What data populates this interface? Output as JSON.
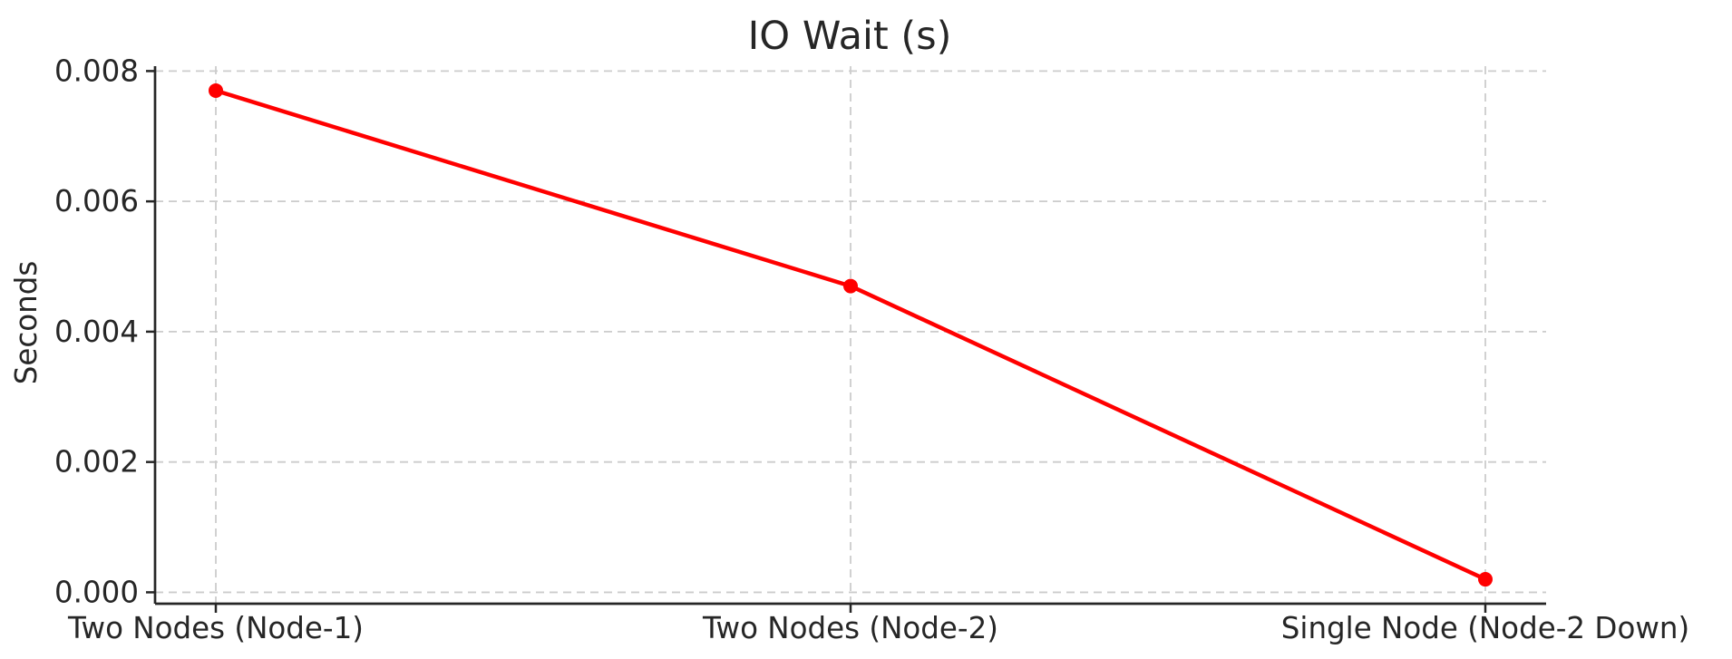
{
  "chart_data": {
    "type": "line",
    "title": "IO Wait (s)",
    "xlabel": "",
    "ylabel": "Seconds",
    "categories": [
      "Two Nodes (Node-1)",
      "Two Nodes (Node-2)",
      "Single Node (Node-2 Down)"
    ],
    "series": [
      {
        "name": "IO Wait",
        "values": [
          0.0077,
          0.0047,
          0.0002
        ],
        "color": "#ff0000",
        "marker": "circle",
        "marker_radius": 8
      }
    ],
    "y_ticks": [
      0.0,
      0.002,
      0.004,
      0.006,
      0.008
    ],
    "y_tick_labels": [
      "0.000",
      "0.002",
      "0.004",
      "0.006",
      "0.008"
    ],
    "ylim": [
      -0.000175,
      0.008075
    ],
    "grid": "both",
    "grid_style": "dashed",
    "legend": "none",
    "colors": {
      "background": "#ffffff",
      "grid": "#cccccc",
      "axis": "#262626",
      "text": "#262626",
      "line": "#ff0000"
    }
  }
}
